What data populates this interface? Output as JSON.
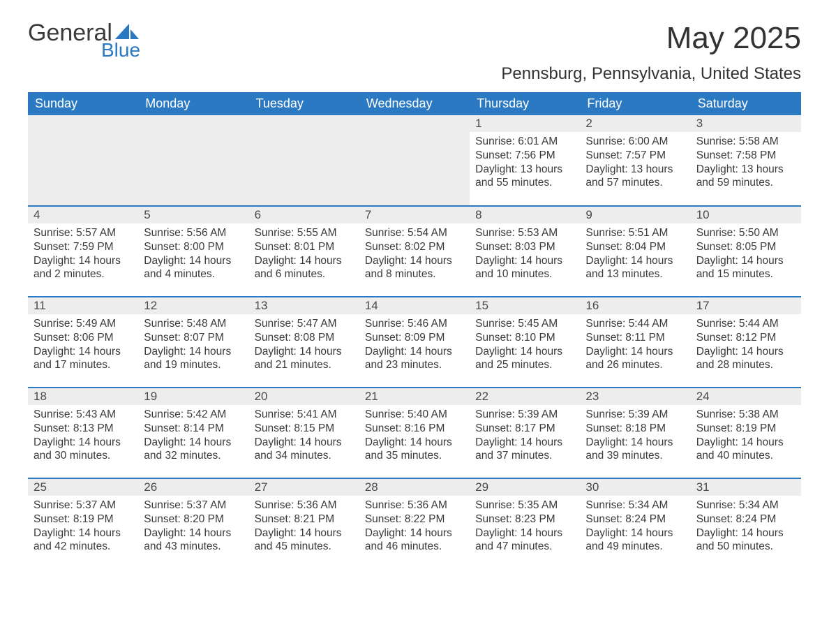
{
  "logo": {
    "word1": "General",
    "word2": "Blue"
  },
  "title": "May 2025",
  "location": "Pennsburg, Pennsylvania, United States",
  "header_bg": "#2b79c2",
  "header_text_color": "#ffffff",
  "daynum_bg": "#ededed",
  "rule_color": "#2b79c2",
  "text_color": "#333333",
  "font_family": "Arial",
  "day_names": [
    "Sunday",
    "Monday",
    "Tuesday",
    "Wednesday",
    "Thursday",
    "Friday",
    "Saturday"
  ],
  "weeks": [
    [
      null,
      null,
      null,
      null,
      {
        "n": "1",
        "sr": "Sunrise: 6:01 AM",
        "ss": "Sunset: 7:56 PM",
        "dl": "Daylight: 13 hours and 55 minutes."
      },
      {
        "n": "2",
        "sr": "Sunrise: 6:00 AM",
        "ss": "Sunset: 7:57 PM",
        "dl": "Daylight: 13 hours and 57 minutes."
      },
      {
        "n": "3",
        "sr": "Sunrise: 5:58 AM",
        "ss": "Sunset: 7:58 PM",
        "dl": "Daylight: 13 hours and 59 minutes."
      }
    ],
    [
      {
        "n": "4",
        "sr": "Sunrise: 5:57 AM",
        "ss": "Sunset: 7:59 PM",
        "dl": "Daylight: 14 hours and 2 minutes."
      },
      {
        "n": "5",
        "sr": "Sunrise: 5:56 AM",
        "ss": "Sunset: 8:00 PM",
        "dl": "Daylight: 14 hours and 4 minutes."
      },
      {
        "n": "6",
        "sr": "Sunrise: 5:55 AM",
        "ss": "Sunset: 8:01 PM",
        "dl": "Daylight: 14 hours and 6 minutes."
      },
      {
        "n": "7",
        "sr": "Sunrise: 5:54 AM",
        "ss": "Sunset: 8:02 PM",
        "dl": "Daylight: 14 hours and 8 minutes."
      },
      {
        "n": "8",
        "sr": "Sunrise: 5:53 AM",
        "ss": "Sunset: 8:03 PM",
        "dl": "Daylight: 14 hours and 10 minutes."
      },
      {
        "n": "9",
        "sr": "Sunrise: 5:51 AM",
        "ss": "Sunset: 8:04 PM",
        "dl": "Daylight: 14 hours and 13 minutes."
      },
      {
        "n": "10",
        "sr": "Sunrise: 5:50 AM",
        "ss": "Sunset: 8:05 PM",
        "dl": "Daylight: 14 hours and 15 minutes."
      }
    ],
    [
      {
        "n": "11",
        "sr": "Sunrise: 5:49 AM",
        "ss": "Sunset: 8:06 PM",
        "dl": "Daylight: 14 hours and 17 minutes."
      },
      {
        "n": "12",
        "sr": "Sunrise: 5:48 AM",
        "ss": "Sunset: 8:07 PM",
        "dl": "Daylight: 14 hours and 19 minutes."
      },
      {
        "n": "13",
        "sr": "Sunrise: 5:47 AM",
        "ss": "Sunset: 8:08 PM",
        "dl": "Daylight: 14 hours and 21 minutes."
      },
      {
        "n": "14",
        "sr": "Sunrise: 5:46 AM",
        "ss": "Sunset: 8:09 PM",
        "dl": "Daylight: 14 hours and 23 minutes."
      },
      {
        "n": "15",
        "sr": "Sunrise: 5:45 AM",
        "ss": "Sunset: 8:10 PM",
        "dl": "Daylight: 14 hours and 25 minutes."
      },
      {
        "n": "16",
        "sr": "Sunrise: 5:44 AM",
        "ss": "Sunset: 8:11 PM",
        "dl": "Daylight: 14 hours and 26 minutes."
      },
      {
        "n": "17",
        "sr": "Sunrise: 5:44 AM",
        "ss": "Sunset: 8:12 PM",
        "dl": "Daylight: 14 hours and 28 minutes."
      }
    ],
    [
      {
        "n": "18",
        "sr": "Sunrise: 5:43 AM",
        "ss": "Sunset: 8:13 PM",
        "dl": "Daylight: 14 hours and 30 minutes."
      },
      {
        "n": "19",
        "sr": "Sunrise: 5:42 AM",
        "ss": "Sunset: 8:14 PM",
        "dl": "Daylight: 14 hours and 32 minutes."
      },
      {
        "n": "20",
        "sr": "Sunrise: 5:41 AM",
        "ss": "Sunset: 8:15 PM",
        "dl": "Daylight: 14 hours and 34 minutes."
      },
      {
        "n": "21",
        "sr": "Sunrise: 5:40 AM",
        "ss": "Sunset: 8:16 PM",
        "dl": "Daylight: 14 hours and 35 minutes."
      },
      {
        "n": "22",
        "sr": "Sunrise: 5:39 AM",
        "ss": "Sunset: 8:17 PM",
        "dl": "Daylight: 14 hours and 37 minutes."
      },
      {
        "n": "23",
        "sr": "Sunrise: 5:39 AM",
        "ss": "Sunset: 8:18 PM",
        "dl": "Daylight: 14 hours and 39 minutes."
      },
      {
        "n": "24",
        "sr": "Sunrise: 5:38 AM",
        "ss": "Sunset: 8:19 PM",
        "dl": "Daylight: 14 hours and 40 minutes."
      }
    ],
    [
      {
        "n": "25",
        "sr": "Sunrise: 5:37 AM",
        "ss": "Sunset: 8:19 PM",
        "dl": "Daylight: 14 hours and 42 minutes."
      },
      {
        "n": "26",
        "sr": "Sunrise: 5:37 AM",
        "ss": "Sunset: 8:20 PM",
        "dl": "Daylight: 14 hours and 43 minutes."
      },
      {
        "n": "27",
        "sr": "Sunrise: 5:36 AM",
        "ss": "Sunset: 8:21 PM",
        "dl": "Daylight: 14 hours and 45 minutes."
      },
      {
        "n": "28",
        "sr": "Sunrise: 5:36 AM",
        "ss": "Sunset: 8:22 PM",
        "dl": "Daylight: 14 hours and 46 minutes."
      },
      {
        "n": "29",
        "sr": "Sunrise: 5:35 AM",
        "ss": "Sunset: 8:23 PM",
        "dl": "Daylight: 14 hours and 47 minutes."
      },
      {
        "n": "30",
        "sr": "Sunrise: 5:34 AM",
        "ss": "Sunset: 8:24 PM",
        "dl": "Daylight: 14 hours and 49 minutes."
      },
      {
        "n": "31",
        "sr": "Sunrise: 5:34 AM",
        "ss": "Sunset: 8:24 PM",
        "dl": "Daylight: 14 hours and 50 minutes."
      }
    ]
  ]
}
